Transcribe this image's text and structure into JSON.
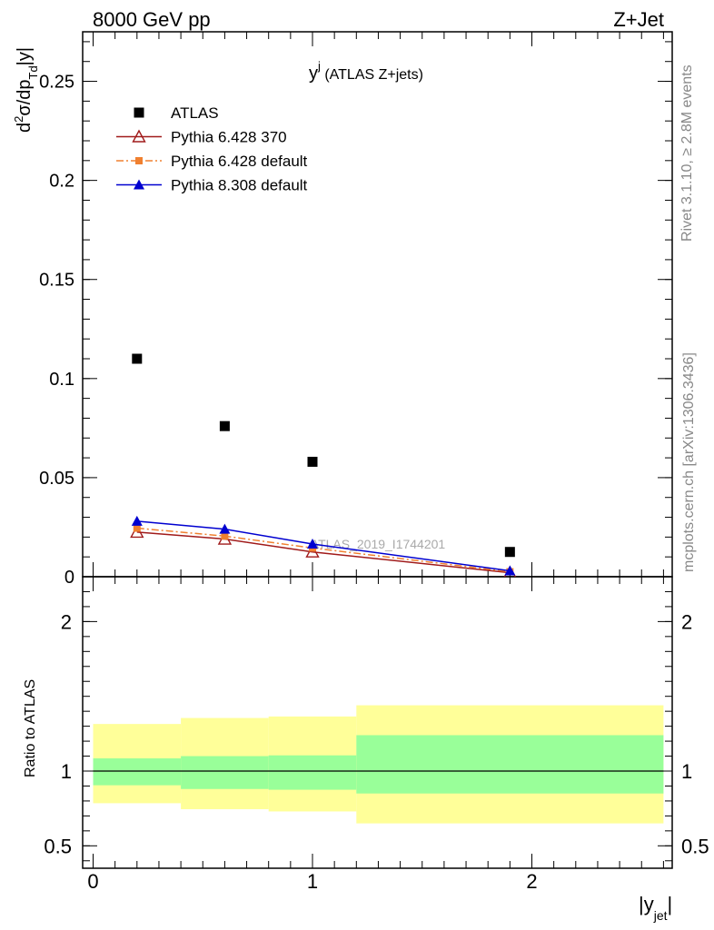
{
  "header": {
    "left": "8000 GeV pp",
    "right": "Z+Jet"
  },
  "side_text": {
    "rivet": "Rivet 3.1.10, ≥ 2.8M events",
    "mcplots": "mcplots.cern.ch [arXiv:1306.3436]"
  },
  "chart_data": [
    {
      "type": "scatter",
      "panel": "main",
      "title_main": "y",
      "title_sup": "j",
      "title_rest": " (ATLAS Z+jets)",
      "ylabel_parts": {
        "a": "d",
        "b": "2",
        "c": "σ/dp",
        "d": "Td",
        "e": "|y|"
      },
      "ylim": [
        0,
        0.275
      ],
      "xlim": [
        -0.05,
        2.65
      ],
      "yticks": [
        {
          "v": 0,
          "label": "0"
        },
        {
          "v": 0.05,
          "label": "0.05"
        },
        {
          "v": 0.1,
          "label": "0.1"
        },
        {
          "v": 0.15,
          "label": "0.15"
        },
        {
          "v": 0.2,
          "label": "0.2"
        },
        {
          "v": 0.25,
          "label": "0.25"
        }
      ],
      "watermark": "ATLAS_2019_I1744201",
      "legend": [
        {
          "label": "ATLAS",
          "color": "#000000",
          "marker": "square",
          "line": "none"
        },
        {
          "label": "Pythia 6.428 370",
          "color": "#a01a1a",
          "marker": "triangle-open",
          "line": "solid"
        },
        {
          "label": "Pythia 6.428 default",
          "color": "#f08030",
          "marker": "square-small",
          "line": "dashdot"
        },
        {
          "label": "Pythia 8.308 default",
          "color": "#0000d0",
          "marker": "triangle",
          "line": "solid"
        }
      ],
      "series": [
        {
          "name": "ATLAS",
          "x": [
            0.2,
            0.6,
            1.0,
            1.9
          ],
          "y": [
            0.11,
            0.076,
            0.058,
            0.0125
          ]
        },
        {
          "name": "Pythia 6.428 370",
          "x": [
            0.2,
            0.6,
            1.0,
            1.9
          ],
          "y": [
            0.0225,
            0.019,
            0.0125,
            0.002
          ]
        },
        {
          "name": "Pythia 6.428 default",
          "x": [
            0.2,
            0.6,
            1.0,
            1.9
          ],
          "y": [
            0.0245,
            0.0205,
            0.0145,
            0.0025
          ]
        },
        {
          "name": "Pythia 8.308 default",
          "x": [
            0.2,
            0.6,
            1.0,
            1.9
          ],
          "y": [
            0.028,
            0.024,
            0.0165,
            0.003
          ]
        }
      ]
    },
    {
      "type": "area",
      "panel": "ratio",
      "ylabel": "Ratio to ATLAS",
      "xlabel_main": "|y",
      "xlabel_sub": "jet",
      "xlabel_end": "|",
      "ylim": [
        0.35,
        2.3
      ],
      "xticks": [
        {
          "v": 0,
          "label": "0"
        },
        {
          "v": 1,
          "label": "1"
        },
        {
          "v": 2,
          "label": "2"
        }
      ],
      "yticks": [
        {
          "v": 0.5,
          "label": "0.5"
        },
        {
          "v": 1,
          "label": "1"
        },
        {
          "v": 2,
          "label": "2"
        }
      ],
      "reference": 1,
      "bands": [
        {
          "x0": 0.0,
          "x1": 0.4,
          "yellow": [
            0.785,
            1.315
          ],
          "green": [
            0.905,
            1.085
          ]
        },
        {
          "x0": 0.4,
          "x1": 0.8,
          "yellow": [
            0.745,
            1.355
          ],
          "green": [
            0.88,
            1.1
          ]
        },
        {
          "x0": 0.8,
          "x1": 1.2,
          "yellow": [
            0.73,
            1.365
          ],
          "green": [
            0.875,
            1.105
          ]
        },
        {
          "x0": 1.2,
          "x1": 2.6,
          "yellow": [
            0.65,
            1.44
          ],
          "green": [
            0.85,
            1.24
          ]
        }
      ],
      "band_colors": {
        "yellow": "#ffff99",
        "green": "#99ff99"
      }
    }
  ]
}
